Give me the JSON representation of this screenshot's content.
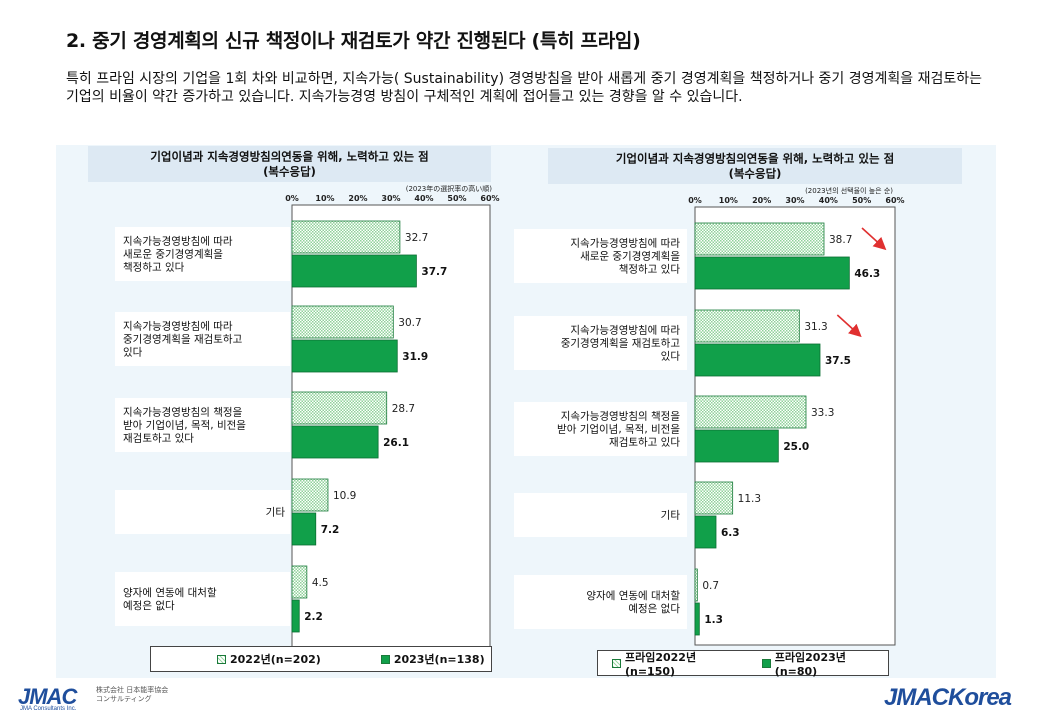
{
  "slide": {
    "title": "2. 중기 경영계획의 신규 책정이나 재검토가 약간 진행된다 (특히 프라임)",
    "description": "특히 프라임 시장의 기업을 1회 차와 비교하면, 지속가능( Sustainability) 경영방침을 받아 새롭게 중기 경영계획을 책정하거나 중기 경영계획을 재검토하는 기업의 비율이 약간 증가하고 있습니다. 지속가능경영 방침이 구체적인 계획에 접어들고 있는 경향을 알 수 있습니다.",
    "logo_left": "JMAC",
    "logo_left_sub": "JMA Consultants Inc.",
    "logo_left_jp": [
      "株式会社 日本能率協会",
      "コンサルティング"
    ],
    "logo_right": "JMACKorea"
  },
  "colors": {
    "hatch_fill": "#9fd8a8",
    "solid_fill": "#11a04a",
    "bar_stroke": "#1a7a3a",
    "arrow": "#e03030",
    "panel_bg": "#eef6fb"
  },
  "chart_data": [
    {
      "type": "bar",
      "orientation": "horizontal",
      "title": "기업이념과 지속경영방침의연동을 위해, 노력하고 있는 점\n(복수응답)",
      "note": "(2023年の選択率の高い順)",
      "xlim": [
        0,
        60
      ],
      "ticks": [
        "0%",
        "10%",
        "20%",
        "30%",
        "40%",
        "50%",
        "60%"
      ],
      "categories": [
        "지속가능경영방침에 따라\n새로운 중기경영계획을\n책정하고 있다",
        "지속가능경영방침에 따라\n중기경영계획을 재검토하고\n있다",
        "지속가능경영방침의 책정을\n받아 기업이념, 목적, 비전을\n재검토하고 있다",
        "기타",
        "양자에 연동에 대처할\n예정은 없다"
      ],
      "series": [
        {
          "name": "2022년(n=202)",
          "style": "hatch",
          "values": [
            32.7,
            30.7,
            28.7,
            10.9,
            4.5
          ]
        },
        {
          "name": "2023년(n=138)",
          "style": "solid",
          "values": [
            37.7,
            31.9,
            26.1,
            7.2,
            2.2
          ]
        }
      ],
      "legend_position": "bottom",
      "grid": false
    },
    {
      "type": "bar",
      "orientation": "horizontal",
      "title": "기업이념과 지속경영방침의연동을 위해, 노력하고 있는 점\n(복수응답)",
      "note": "(2023년의 선택율이 높은 순)",
      "xlim": [
        0,
        60
      ],
      "ticks": [
        "0%",
        "10%",
        "20%",
        "30%",
        "40%",
        "50%",
        "60%"
      ],
      "categories": [
        "지속가능경영방침에 따라\n새로운 중기경영계획을\n책정하고 있다",
        "지속가능경영방침에 따라\n중기경영계획을 재검토하고\n있다",
        "지속가능경영방침의 책정을\n받아 기업이념, 목적, 비전을\n재검토하고 있다",
        "기타",
        "양자에 연동에 대처할\n예정은 없다"
      ],
      "series": [
        {
          "name": "프라임2022년(n=150)",
          "style": "hatch",
          "values": [
            38.7,
            31.3,
            33.3,
            11.3,
            0.7
          ]
        },
        {
          "name": "프라임2023년(n=80)",
          "style": "solid",
          "values": [
            46.3,
            37.5,
            25.0,
            6.3,
            1.3
          ]
        }
      ],
      "legend_position": "bottom",
      "grid": false,
      "increase_arrows_on_categories": [
        0,
        1
      ]
    }
  ]
}
